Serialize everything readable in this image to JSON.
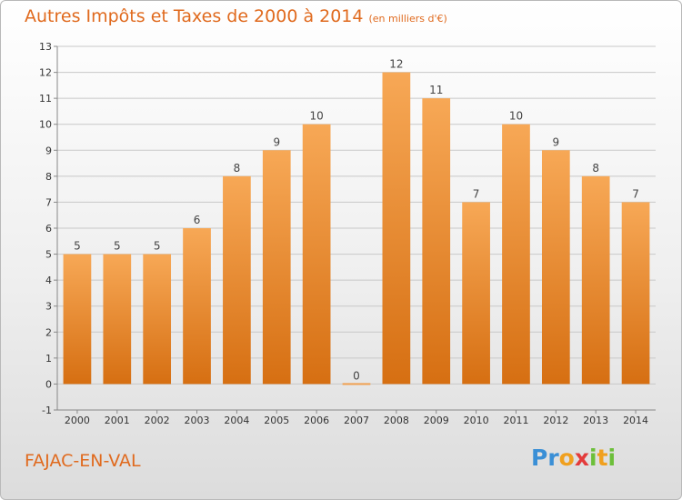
{
  "title": "Autres Impôts et Taxes de 2000 à 2014",
  "unit": "(en milliers d'€)",
  "commune": "FAJAC-EN-VAL",
  "logo": {
    "letters": [
      "P",
      "r",
      "o",
      "x",
      "i",
      "t",
      "i"
    ],
    "colors": [
      "#3a8fd6",
      "#3a8fd6",
      "#f0a01e",
      "#e33b3b",
      "#6cbf3a",
      "#f0a01e",
      "#6cbf3a"
    ]
  },
  "colors": {
    "bar_light": "#f7a856",
    "bar_dark": "#d66f12",
    "zero_bar": "#f0a050",
    "grid": "#c8c8c8"
  },
  "chart_data": {
    "type": "bar",
    "categories": [
      "2000",
      "2001",
      "2002",
      "2003",
      "2004",
      "2005",
      "2006",
      "2007",
      "2008",
      "2009",
      "2010",
      "2011",
      "2012",
      "2013",
      "2014"
    ],
    "values": [
      5,
      5,
      5,
      6,
      8,
      9,
      10,
      0,
      12,
      11,
      7,
      10,
      9,
      8,
      7
    ],
    "ylim": [
      -1,
      13
    ],
    "yticks": [
      -1,
      0,
      1,
      2,
      3,
      4,
      5,
      6,
      7,
      8,
      9,
      10,
      11,
      12,
      13
    ],
    "grid": "horizontal",
    "title": "Autres Impôts et Taxes de 2000 à 2014",
    "xlabel": "",
    "ylabel": ""
  }
}
